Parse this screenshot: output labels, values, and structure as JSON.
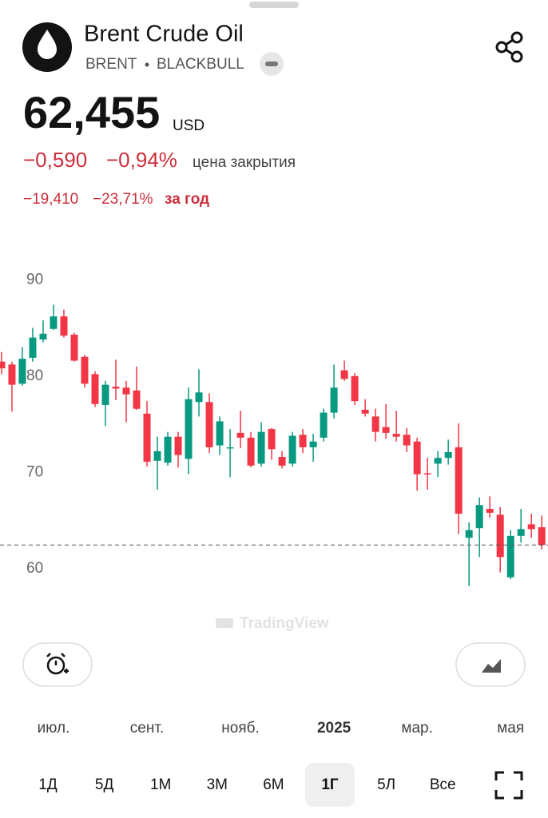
{
  "header": {
    "title": "Brent Crude Oil",
    "symbol": "BRENT",
    "exchange": "BLACKBULL",
    "price": "62,455",
    "currency": "USD",
    "change": "−0,590",
    "change_percent": "−0,94%",
    "change_note": "цена закрытия",
    "year_change": "−19,410",
    "year_change_percent": "−23,71%",
    "year_note": "за год"
  },
  "chart_data": {
    "type": "candlestick",
    "watermark": "TradingView",
    "up_color": "#089981",
    "down_color": "#f23645",
    "open": [
      81.5,
      81.2,
      79.2,
      81.9,
      83.8,
      84.9,
      86.2,
      84.3,
      82,
      80.2,
      77,
      78.9,
      78.8,
      78.5,
      76.1,
      71.2,
      71,
      73.7,
      71.4,
      77.3,
      77.3,
      72.8,
      72.5,
      74.1,
      73.6,
      70.9,
      74.5,
      71.6,
      70.9,
      73.9,
      72.6,
      73.6,
      76.2,
      80.6,
      80,
      76.5,
      75.8,
      74.7,
      74,
      73.9,
      73.2,
      69.9,
      70.9,
      71.5,
      72.6,
      63.2,
      64.2,
      66.2,
      65.6,
      59.1,
      63.4,
      64.6,
      64.3
    ],
    "high": [
      82.5,
      81.5,
      83,
      85,
      85.8,
      87.4,
      86.9,
      84.5,
      82.2,
      80.5,
      79.5,
      81.7,
      79.5,
      81,
      77.4,
      73.7,
      74.2,
      74.2,
      78.8,
      80.7,
      78.2,
      75.8,
      74.5,
      76.4,
      74.2,
      75.2,
      74.6,
      72.2,
      74.2,
      74.5,
      74,
      76.6,
      81.2,
      81.6,
      80.3,
      77.6,
      76.6,
      77.1,
      76.4,
      74.6,
      73.6,
      71.5,
      72.2,
      73.4,
      75.1,
      64.8,
      67.4,
      67.5,
      66.4,
      64,
      66.2,
      65.7,
      65.5
    ],
    "low": [
      80.2,
      76.3,
      79,
      81.5,
      83.5,
      84.8,
      84,
      81.5,
      78.8,
      76.8,
      74.8,
      77.5,
      75.2,
      76.5,
      70.6,
      68.2,
      70.7,
      70.5,
      69.8,
      75.8,
      72,
      71.8,
      69.5,
      72.5,
      70.5,
      70.6,
      71.3,
      70.4,
      70.6,
      72,
      71.1,
      73.2,
      75.6,
      79.5,
      77,
      75.8,
      73.2,
      73.5,
      73.2,
      72.1,
      68.1,
      68.2,
      69.5,
      70.8,
      63.6,
      58.2,
      61.2,
      65.3,
      59.6,
      58.9,
      62.7,
      63.2,
      62
    ],
    "close": [
      80.8,
      79.1,
      81.8,
      84,
      84.4,
      86.2,
      84.2,
      81.6,
      79.2,
      77.1,
      79.1,
      78.7,
      78.1,
      76.6,
      71.1,
      72.2,
      73.7,
      71.8,
      77.6,
      78.3,
      72.6,
      75.3,
      72.6,
      73.6,
      70.7,
      74.2,
      72.4,
      70.7,
      73.8,
      72.6,
      73.2,
      76.2,
      78.8,
      79.7,
      77.4,
      76.1,
      74.2,
      74.1,
      73.7,
      72.8,
      69.8,
      69.8,
      71.5,
      72.1,
      65.7,
      64,
      66.6,
      65.8,
      61.2,
      63.4,
      64.1,
      64.1,
      62.455
    ],
    "xlim": [
      -0.15,
      52.6
    ],
    "xticks": [
      {
        "value": 5,
        "label": "июл."
      },
      {
        "value": 14,
        "label": "сент."
      },
      {
        "value": 23,
        "label": "нояб."
      },
      {
        "value": 32,
        "label": "2025"
      },
      {
        "value": 40,
        "label": "мар."
      },
      {
        "value": 49,
        "label": "мая"
      }
    ],
    "ylim": [
      56,
      95
    ],
    "yticks": [
      60,
      70,
      80,
      90
    ],
    "grid": false
  },
  "ranges": {
    "items": [
      "1Д",
      "5Д",
      "1М",
      "3М",
      "6М",
      "1Г",
      "5Л",
      "Все"
    ],
    "selected": 5
  }
}
